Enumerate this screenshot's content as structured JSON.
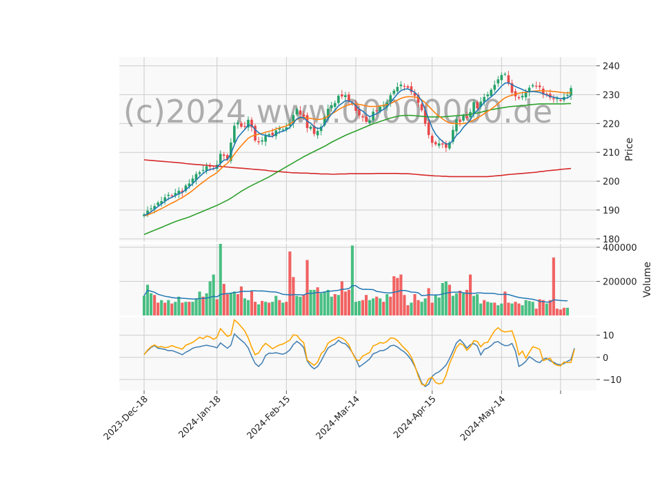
{
  "watermark": "(c)2024 www.00000000.de",
  "chart_data": [
    {
      "type": "candlestick",
      "panel": "price",
      "ylabel": "Price",
      "ylim": [
        179,
        243
      ],
      "yticks": [
        180,
        190,
        200,
        210,
        220,
        230,
        240
      ],
      "grid": true,
      "colors": {
        "up": "#26a269",
        "down": "#e8484a",
        "ma_short": "#1f77b4",
        "ma_mid": "#ff7f0e",
        "ma_long": "#2ca02c",
        "ma_200": "#d62728"
      },
      "candles_close": [
        188.5,
        189.8,
        190.6,
        191.4,
        192.6,
        193.1,
        194.4,
        195.3,
        194.8,
        195.9,
        196.7,
        196.1,
        198.5,
        199.2,
        200.9,
        202.5,
        203.1,
        203.9,
        205.2,
        205.0,
        204.3,
        205.7,
        209.5,
        208.8,
        207.5,
        213.4,
        219.2,
        220.4,
        218.9,
        219.1,
        221.3,
        218.7,
        214.1,
        213.5,
        214.2,
        215.8,
        216.3,
        215.9,
        217.6,
        218.4,
        217.9,
        218.7,
        220.2,
        222.9,
        225.0,
        223.1,
        222.4,
        218.4,
        218.9,
        216.4,
        217.4,
        218.9,
        222.3,
        225.1,
        226.3,
        227.1,
        229.6,
        229.4,
        229.8,
        227.7,
        226.7,
        224.4,
        222.8,
        222.1,
        220.6,
        221.1,
        224.1,
        224.3,
        225.8,
        226.2,
        227.3,
        229.8,
        231.4,
        232.7,
        233.5,
        232.9,
        232.4,
        230.9,
        229.6,
        227.2,
        224.6,
        219.9,
        216.0,
        213.3,
        212.8,
        213.1,
        212.7,
        211.6,
        213.4,
        217.8,
        221.4,
        220.5,
        222.8,
        221.9,
        224.0,
        227.4,
        225.3,
        227.6,
        229.2,
        230.1,
        231.7,
        233.4,
        235.3,
        236.8,
        237.2,
        234.0,
        230.7,
        229.4,
        228.8,
        229.6,
        230.8,
        232.4,
        233.3,
        232.9,
        232.6,
        230.3,
        229.8,
        229.0,
        228.4,
        228.7,
        228.1,
        229.2,
        229.9,
        232.3
      ],
      "ma_short": [
        188.1,
        188.6,
        189.4,
        190.3,
        191.2,
        192.1,
        193.0,
        193.9,
        194.4,
        195.0,
        195.7,
        196.1,
        197.1,
        198.0,
        199.2,
        200.4,
        201.6,
        202.7,
        203.6,
        204.1,
        204.3,
        204.8,
        206.2,
        207.3,
        207.5,
        209.5,
        212.6,
        215.2,
        216.6,
        217.9,
        219.5,
        219.3,
        217.9,
        216.8,
        216.1,
        216.0,
        215.5,
        215.5,
        216.4,
        217.0,
        217.3,
        217.8,
        218.7,
        220.1,
        221.6,
        222.1,
        222.0,
        220.8,
        220.1,
        218.8,
        218.3,
        218.4,
        219.7,
        221.7,
        223.3,
        224.6,
        226.1,
        227.0,
        227.9,
        227.8,
        227.3,
        226.1,
        225.0,
        224.3,
        223.2,
        222.4,
        222.9,
        223.4,
        224.2,
        224.9,
        225.8,
        227.3,
        228.8,
        230.3,
        231.4,
        231.9,
        232.0,
        231.5,
        230.8,
        229.6,
        227.8,
        224.8,
        221.6,
        218.5,
        216.3,
        214.9,
        213.8,
        212.9,
        212.9,
        214.1,
        215.9,
        217.0,
        218.7,
        219.9,
        221.3,
        223.3,
        224.5,
        225.9,
        227.3,
        228.3,
        229.3,
        230.3,
        231.6,
        233.0,
        234.0,
        234.1,
        233.5,
        232.8,
        232.3,
        231.8,
        231.2,
        231.0,
        231.1,
        231.0,
        230.8,
        230.3,
        229.9,
        229.4,
        229.1,
        228.9,
        228.6,
        228.7,
        228.9,
        229.6
      ],
      "ma_mid": [
        188.0,
        188.3,
        188.8,
        189.3,
        189.9,
        190.5,
        191.1,
        191.8,
        192.4,
        193.0,
        193.7,
        194.3,
        195.1,
        195.9,
        196.8,
        197.8,
        198.8,
        199.7,
        200.6,
        201.5,
        202.2,
        203.0,
        204.2,
        205.3,
        206.2,
        207.6,
        209.3,
        210.9,
        212.3,
        213.6,
        214.9,
        215.6,
        216.0,
        216.3,
        216.6,
        217.0,
        217.3,
        217.6,
        218.1,
        218.5,
        218.8,
        219.2,
        219.8,
        220.6,
        221.4,
        221.9,
        222.1,
        221.9,
        221.8,
        221.5,
        221.4,
        221.5,
        221.9,
        222.6,
        223.3,
        224.0,
        224.8,
        225.5,
        226.1,
        226.5,
        226.8,
        226.8,
        226.6,
        226.4,
        226.1,
        225.9,
        225.9,
        225.9,
        226.1,
        226.3,
        226.5,
        226.9,
        227.5,
        228.1,
        228.7,
        229.1,
        229.3,
        229.3,
        229.2,
        228.9,
        228.2,
        227.2,
        226.0,
        224.7,
        223.5,
        222.5,
        221.6,
        220.8,
        220.2,
        220.0,
        220.0,
        219.9,
        220.0,
        220.2,
        220.6,
        221.3,
        221.9,
        222.6,
        223.4,
        224.2,
        225.0,
        225.9,
        226.9,
        228.0,
        228.9,
        229.4,
        229.8,
        230.2,
        230.5,
        230.7,
        230.8,
        231.0,
        231.2,
        231.3,
        231.4,
        231.3,
        231.3,
        231.2,
        231.1,
        231.0,
        230.8,
        230.7,
        230.6,
        230.7
      ],
      "ma_long": [
        181.5,
        182.0,
        182.5,
        183.0,
        183.5,
        184.0,
        184.5,
        185.0,
        185.5,
        186.0,
        186.4,
        186.8,
        187.2,
        187.6,
        188.1,
        188.6,
        189.1,
        189.6,
        190.1,
        190.6,
        191.1,
        191.6,
        192.2,
        192.8,
        193.4,
        194.1,
        194.9,
        195.7,
        196.5,
        197.2,
        197.9,
        198.5,
        199.1,
        199.7,
        200.3,
        200.9,
        201.5,
        202.2,
        202.9,
        203.6,
        204.3,
        205.0,
        205.7,
        206.4,
        207.1,
        207.8,
        208.5,
        209.1,
        209.7,
        210.3,
        210.9,
        211.5,
        212.1,
        212.8,
        213.5,
        214.1,
        214.7,
        215.3,
        215.9,
        216.4,
        216.9,
        217.4,
        217.9,
        218.4,
        218.9,
        219.4,
        219.9,
        220.3,
        220.7,
        221.1,
        221.5,
        221.9,
        222.2,
        222.5,
        222.7,
        222.8,
        222.8,
        222.8,
        222.7,
        222.6,
        222.5,
        222.4,
        222.3,
        222.3,
        222.3,
        222.3,
        222.3,
        222.4,
        222.5,
        222.6,
        222.7,
        222.8,
        222.9,
        223.0,
        223.2,
        223.4,
        223.6,
        223.9,
        224.2,
        224.5,
        224.8,
        225.0,
        225.2,
        225.4,
        225.6,
        225.8,
        225.9,
        226.0,
        226.1,
        226.2,
        226.3,
        226.5,
        226.6,
        226.7,
        226.8,
        226.8,
        226.8,
        226.8,
        226.8,
        226.8,
        226.8,
        226.8,
        226.9,
        226.9
      ],
      "ma_200": [
        207.4,
        207.3,
        207.2,
        207.1,
        207.0,
        206.9,
        206.8,
        206.7,
        206.6,
        206.5,
        206.4,
        206.3,
        206.1,
        206.0,
        205.9,
        205.8,
        205.7,
        205.6,
        205.5,
        205.4,
        205.3,
        205.2,
        205.1,
        205.0,
        204.9,
        204.8,
        204.7,
        204.6,
        204.5,
        204.4,
        204.3,
        204.2,
        204.1,
        204.0,
        203.9,
        203.8,
        203.6,
        203.5,
        203.4,
        203.3,
        203.2,
        203.1,
        203.0,
        202.9,
        202.9,
        202.8,
        202.8,
        202.8,
        202.7,
        202.7,
        202.6,
        202.5,
        202.5,
        202.5,
        202.4,
        202.4,
        202.5,
        202.5,
        202.5,
        202.6,
        202.6,
        202.6,
        202.6,
        202.6,
        202.6,
        202.6,
        202.6,
        202.7,
        202.7,
        202.7,
        202.7,
        202.7,
        202.7,
        202.7,
        202.6,
        202.6,
        202.6,
        202.5,
        202.4,
        202.3,
        202.2,
        202.1,
        202.0,
        201.9,
        201.8,
        201.8,
        201.7,
        201.7,
        201.6,
        201.6,
        201.6,
        201.6,
        201.6,
        201.6,
        201.6,
        201.6,
        201.6,
        201.6,
        201.6,
        201.6,
        201.7,
        201.8,
        201.9,
        202.0,
        202.2,
        202.3,
        202.4,
        202.5,
        202.6,
        202.7,
        202.8,
        202.9,
        203.0,
        203.1,
        203.3,
        203.4,
        203.6,
        203.7,
        203.8,
        203.9,
        204.1,
        204.2,
        204.3,
        204.4
      ]
    },
    {
      "type": "bar",
      "panel": "volume",
      "ylabel": "Volume",
      "ylim": [
        0,
        420000
      ],
      "yticks": [
        200000,
        400000
      ],
      "volume": [
        115000,
        180000,
        130000,
        120000,
        75000,
        90000,
        75000,
        90000,
        70000,
        80000,
        110000,
        75000,
        80000,
        80000,
        80000,
        100000,
        140000,
        110000,
        130000,
        200000,
        240000,
        95000,
        420000,
        185000,
        125000,
        130000,
        140000,
        125000,
        170000,
        100000,
        90000,
        145000,
        80000,
        65000,
        85000,
        80000,
        75000,
        80000,
        115000,
        90000,
        75000,
        80000,
        375000,
        225000,
        115000,
        110000,
        120000,
        325000,
        150000,
        150000,
        165000,
        130000,
        140000,
        150000,
        110000,
        125000,
        120000,
        200000,
        140000,
        150000,
        410000,
        80000,
        85000,
        90000,
        120000,
        90000,
        100000,
        110000,
        100000,
        80000,
        125000,
        110000,
        230000,
        220000,
        240000,
        120000,
        60000,
        75000,
        125000,
        90000,
        80000,
        100000,
        160000,
        75000,
        120000,
        105000,
        190000,
        200000,
        180000,
        115000,
        130000,
        145000,
        130000,
        150000,
        240000,
        115000,
        125000,
        70000,
        90000,
        80000,
        75000,
        75000,
        60000,
        70000,
        140000,
        75000,
        70000,
        80000,
        70000,
        60000,
        90000,
        85000,
        80000,
        40000,
        95000,
        90000,
        70000,
        90000,
        340000,
        40000,
        35000,
        45000,
        45000
      ],
      "up": [
        true,
        true,
        true,
        false,
        false,
        true,
        false,
        true,
        false,
        true,
        true,
        false,
        true,
        false,
        true,
        true,
        true,
        false,
        true,
        true,
        true,
        false,
        true,
        false,
        false,
        true,
        true,
        false,
        false,
        true,
        true,
        false,
        false,
        true,
        false,
        true,
        false,
        true,
        true,
        false,
        true,
        false,
        false,
        false,
        true,
        true,
        false,
        false,
        true,
        true,
        false,
        true,
        true,
        true,
        true,
        false,
        true,
        false,
        false,
        false,
        true,
        true,
        true,
        false,
        false,
        true,
        true,
        false,
        true,
        false,
        true,
        false,
        false,
        false,
        false,
        false,
        false,
        true,
        false,
        false,
        true,
        true,
        false,
        false,
        true,
        true,
        true,
        true,
        false,
        true,
        true,
        false,
        true,
        false,
        false,
        true,
        true,
        true,
        false,
        true,
        true,
        false,
        true,
        true,
        false,
        false,
        true,
        false,
        false,
        true,
        true,
        true,
        true,
        false,
        false,
        false,
        true,
        false,
        false,
        false,
        false,
        false,
        true
      ]
    },
    {
      "type": "line",
      "panel": "oscillator",
      "ylim": [
        -15,
        18
      ],
      "yticks": [
        -10,
        0,
        10
      ],
      "series": [
        {
          "color": "#4682b4",
          "values": [
            1.3,
            3.0,
            4.5,
            5.3,
            4.1,
            3.9,
            3.6,
            3.0,
            3.1,
            2.5,
            1.9,
            1.2,
            2.3,
            3.1,
            4.1,
            4.6,
            4.8,
            5.2,
            5.5,
            5.1,
            4.8,
            4.3,
            6.5,
            5.3,
            4.1,
            5.5,
            10.6,
            9.1,
            7.7,
            6.4,
            4.2,
            0.5,
            -2.8,
            -4.1,
            -2.5,
            0.8,
            1.9,
            1.8,
            2.1,
            1.7,
            1.4,
            2.1,
            3.4,
            5.8,
            7.2,
            6.1,
            4.4,
            -1.6,
            -3.9,
            -5.2,
            -4.1,
            -1.6,
            1.4,
            4.2,
            5.3,
            6.0,
            7.7,
            6.5,
            6.1,
            4.5,
            2.1,
            -0.6,
            -4.3,
            -3.2,
            -2.0,
            -0.7,
            1.6,
            2.2,
            3.0,
            3.1,
            3.9,
            5.2,
            5.5,
            4.7,
            3.4,
            2.4,
            0.8,
            -1.2,
            -4.1,
            -7.7,
            -11.6,
            -13.2,
            -12.1,
            -8.6,
            -7.3,
            -6.5,
            -5.1,
            -3.5,
            -0.6,
            2.9,
            6.5,
            8.0,
            6.4,
            4.2,
            5.7,
            6.2,
            5.2,
            1.1,
            3.6,
            4.2,
            5.3,
            6.8,
            7.1,
            6.0,
            5.3,
            5.4,
            6.3,
            2.8,
            -4.1,
            -3.2,
            -1.8,
            0.3,
            -0.7,
            -1.9,
            -2.4,
            -0.8,
            -0.4,
            -1.6,
            -2.2,
            -3.1,
            -3.4,
            -2.8,
            -1.8,
            -1.0,
            4.1
          ]
        },
        {
          "color": "#ffa500",
          "values": [
            1.2,
            3.3,
            4.8,
            5.6,
            4.6,
            4.9,
            4.4,
            4.6,
            5.3,
            4.7,
            4.2,
            3.7,
            5.5,
            6.1,
            6.8,
            7.9,
            9.1,
            8.4,
            9.6,
            9.2,
            8.1,
            9.1,
            13.0,
            11.2,
            9.5,
            10.1,
            16.9,
            15.6,
            13.8,
            12.0,
            8.8,
            4.5,
            1.2,
            2.0,
            4.6,
            6.3,
            5.2,
            3.9,
            4.8,
            5.6,
            6.0,
            6.9,
            7.8,
            10.2,
            9.9,
            8.0,
            6.6,
            -1.2,
            -2.5,
            -3.6,
            -2.1,
            1.6,
            3.2,
            6.4,
            7.5,
            8.2,
            9.1,
            8.7,
            7.6,
            5.6,
            2.0,
            -1.0,
            -1.5,
            0.6,
            1.4,
            2.2,
            5.2,
            5.8,
            6.7,
            6.4,
            7.2,
            8.8,
            8.6,
            7.6,
            5.8,
            4.1,
            2.6,
            0.1,
            -3.6,
            -8.6,
            -12.2,
            -12.7,
            -9.7,
            -9.0,
            -11.4,
            -12.0,
            -11.5,
            -8.1,
            -2.8,
            0.7,
            4.4,
            6.3,
            5.5,
            3.2,
            4.8,
            7.5,
            7.2,
            4.8,
            6.5,
            6.8,
            9.5,
            12.1,
            13.4,
            12.0,
            11.5,
            11.7,
            12.0,
            7.4,
            1.1,
            2.8,
            -0.4,
            2.3,
            4.8,
            4.3,
            3.6,
            -1.5,
            -0.9,
            -0.4,
            -2.8,
            -3.6,
            -3.9,
            -2.1,
            -2.4,
            -2.3,
            3.6
          ]
        }
      ]
    }
  ],
  "x_axis": {
    "ticks": [
      "2023-Dec-18",
      "2024-Jan-18",
      "2024-Feb-15",
      "2024-Mar-14",
      "2024-Apr-15",
      "2024-May-14",
      ""
    ]
  }
}
